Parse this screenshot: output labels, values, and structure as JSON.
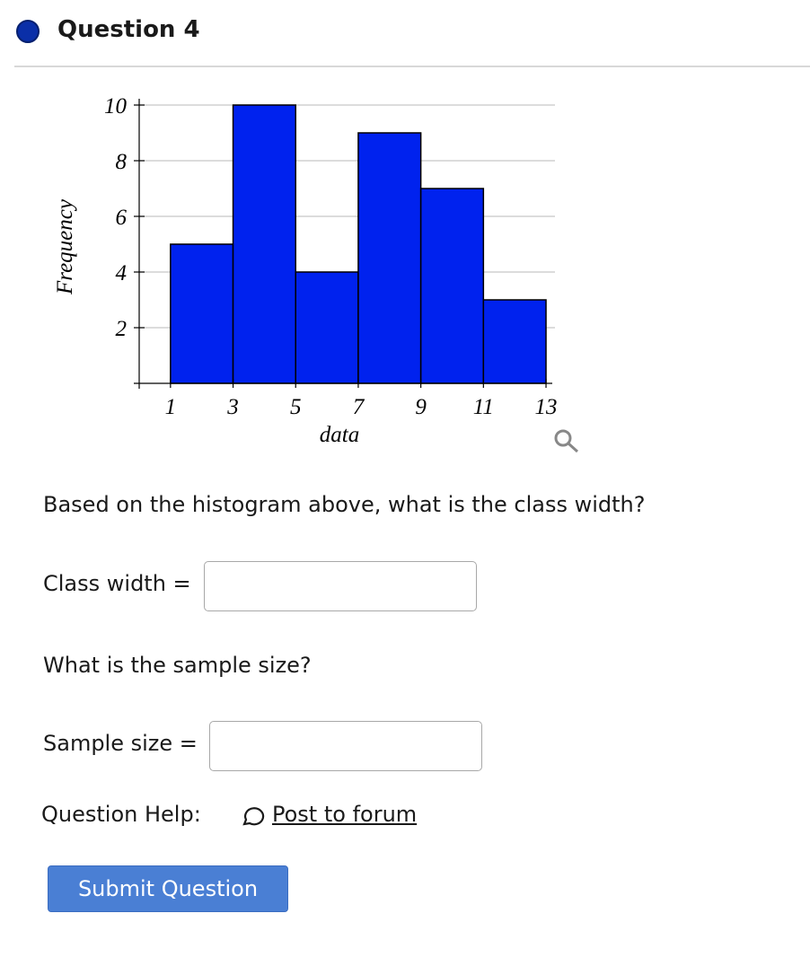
{
  "header": {
    "title": "Question 4"
  },
  "chart_data": {
    "type": "histogram",
    "xlabel": "data",
    "ylabel": "Frequency",
    "bins": [
      1,
      3,
      5,
      7,
      9,
      11,
      13
    ],
    "values": [
      5,
      10,
      4,
      9,
      7,
      3
    ],
    "color": "#0022ee",
    "xlim": [
      0,
      13.2
    ],
    "ylim": [
      0,
      10
    ],
    "xticks": [
      1,
      3,
      5,
      7,
      9,
      11,
      13
    ],
    "yticks": [
      2,
      4,
      6,
      8,
      10
    ],
    "grid": true
  },
  "questions": [
    {
      "prompt": "Based on the histogram above, what is the class width?",
      "field_label": "Class width ="
    },
    {
      "prompt": "What is the sample size?",
      "field_label": "Sample size ="
    }
  ],
  "help": {
    "label": "Question Help:",
    "link": "Post to forum"
  },
  "submit_button": "Submit Question"
}
